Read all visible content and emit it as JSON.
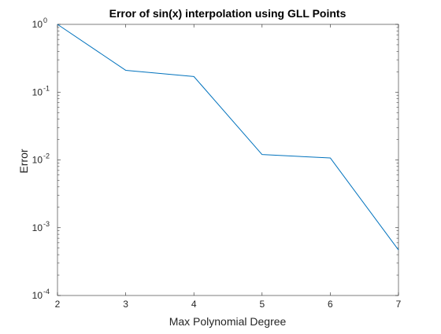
{
  "chart_data": {
    "type": "line",
    "title": "Error of sin(x) interpolation using GLL Points",
    "xlabel": "Max Polynomial Degree",
    "ylabel": "Error",
    "x": [
      2,
      3,
      4,
      5,
      6,
      7
    ],
    "series": [
      {
        "values": [
          1.0,
          0.21,
          0.17,
          0.012,
          0.0107,
          0.00047
        ],
        "color": "#0072bd"
      }
    ],
    "xlim": [
      2,
      7
    ],
    "ylim": [
      0.0001,
      1
    ],
    "yscale": "log",
    "grid": false,
    "box": true,
    "x_ticks": [
      2,
      3,
      4,
      5,
      6,
      7
    ],
    "y_ticks": [
      {
        "value": 1,
        "base": "10",
        "exp": "0"
      },
      {
        "value": 0.1,
        "base": "10",
        "exp": "-1"
      },
      {
        "value": 0.01,
        "base": "10",
        "exp": "-2"
      },
      {
        "value": 0.001,
        "base": "10",
        "exp": "-3"
      },
      {
        "value": 0.0001,
        "base": "10",
        "exp": "-4"
      }
    ]
  }
}
